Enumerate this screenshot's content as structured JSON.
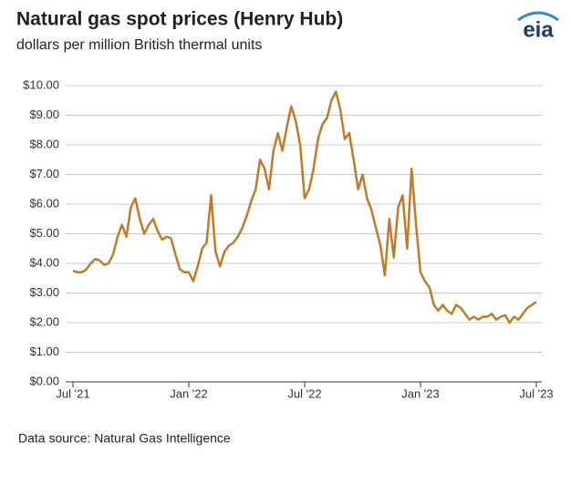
{
  "chart_data": {
    "type": "line",
    "title": "Natural gas spot prices (Henry Hub)",
    "subtitle": "dollars per million British thermal units",
    "logo": "eia",
    "source": "Data source: Natural Gas Intelligence",
    "categories": [
      "Jul '21",
      null,
      null,
      null,
      null,
      null,
      null,
      null,
      null,
      null,
      null,
      null,
      null,
      null,
      null,
      null,
      null,
      null,
      null,
      null,
      null,
      null,
      null,
      null,
      null,
      null,
      "Jan '22",
      null,
      null,
      null,
      null,
      null,
      null,
      null,
      null,
      null,
      null,
      null,
      null,
      null,
      null,
      null,
      null,
      null,
      null,
      null,
      null,
      null,
      null,
      null,
      null,
      null,
      "Jul '22",
      null,
      null,
      null,
      null,
      null,
      null,
      null,
      null,
      null,
      null,
      null,
      null,
      null,
      null,
      null,
      null,
      null,
      null,
      null,
      null,
      null,
      null,
      null,
      null,
      null,
      "Jan '23",
      null,
      null,
      null,
      null,
      null,
      null,
      null,
      null,
      null,
      null,
      null,
      null,
      null,
      null,
      null,
      null,
      null,
      null,
      null,
      null,
      null,
      null,
      null,
      null,
      null,
      "Jul '23"
    ],
    "series": [
      {
        "name": "Henry Hub",
        "color": "#bf7a2a",
        "values": [
          3.75,
          3.7,
          3.7,
          3.8,
          4.0,
          4.15,
          4.1,
          3.95,
          4.0,
          4.3,
          4.9,
          5.3,
          4.9,
          5.9,
          6.2,
          5.5,
          5.0,
          5.3,
          5.5,
          5.1,
          4.8,
          4.9,
          4.85,
          4.3,
          3.8,
          3.7,
          3.7,
          3.4,
          3.9,
          4.5,
          4.7,
          6.3,
          4.4,
          3.9,
          4.4,
          4.6,
          4.7,
          4.9,
          5.2,
          5.6,
          6.1,
          6.5,
          7.5,
          7.2,
          6.5,
          7.8,
          8.4,
          7.8,
          8.6,
          9.3,
          8.8,
          8.0,
          6.2,
          6.5,
          7.2,
          8.2,
          8.7,
          8.9,
          9.5,
          9.8,
          9.2,
          8.2,
          8.4,
          7.5,
          6.5,
          7.0,
          6.2,
          5.8,
          5.2,
          4.6,
          3.6,
          5.5,
          4.2,
          5.9,
          6.3,
          4.5,
          7.2,
          5.3,
          3.7,
          3.4,
          3.2,
          2.6,
          2.4,
          2.6,
          2.4,
          2.3,
          2.6,
          2.5,
          2.3,
          2.1,
          2.2,
          2.1,
          2.2,
          2.2,
          2.3,
          2.1,
          2.2,
          2.25,
          2.0,
          2.2,
          2.1,
          2.3,
          2.5,
          2.6,
          2.7
        ]
      }
    ],
    "ylim": [
      0,
      10
    ],
    "yticks": [
      {
        "value": 0,
        "label": "$0.00"
      },
      {
        "value": 1,
        "label": "$1.00"
      },
      {
        "value": 2,
        "label": "$2.00"
      },
      {
        "value": 3,
        "label": "$3.00"
      },
      {
        "value": 4,
        "label": "$4.00"
      },
      {
        "value": 5,
        "label": "$5.00"
      },
      {
        "value": 6,
        "label": "$6.00"
      },
      {
        "value": 7,
        "label": "$7.00"
      },
      {
        "value": 8,
        "label": "$8.00"
      },
      {
        "value": 9,
        "label": "$9.00"
      },
      {
        "value": 10,
        "label": "$10.00"
      }
    ],
    "grid": true
  }
}
